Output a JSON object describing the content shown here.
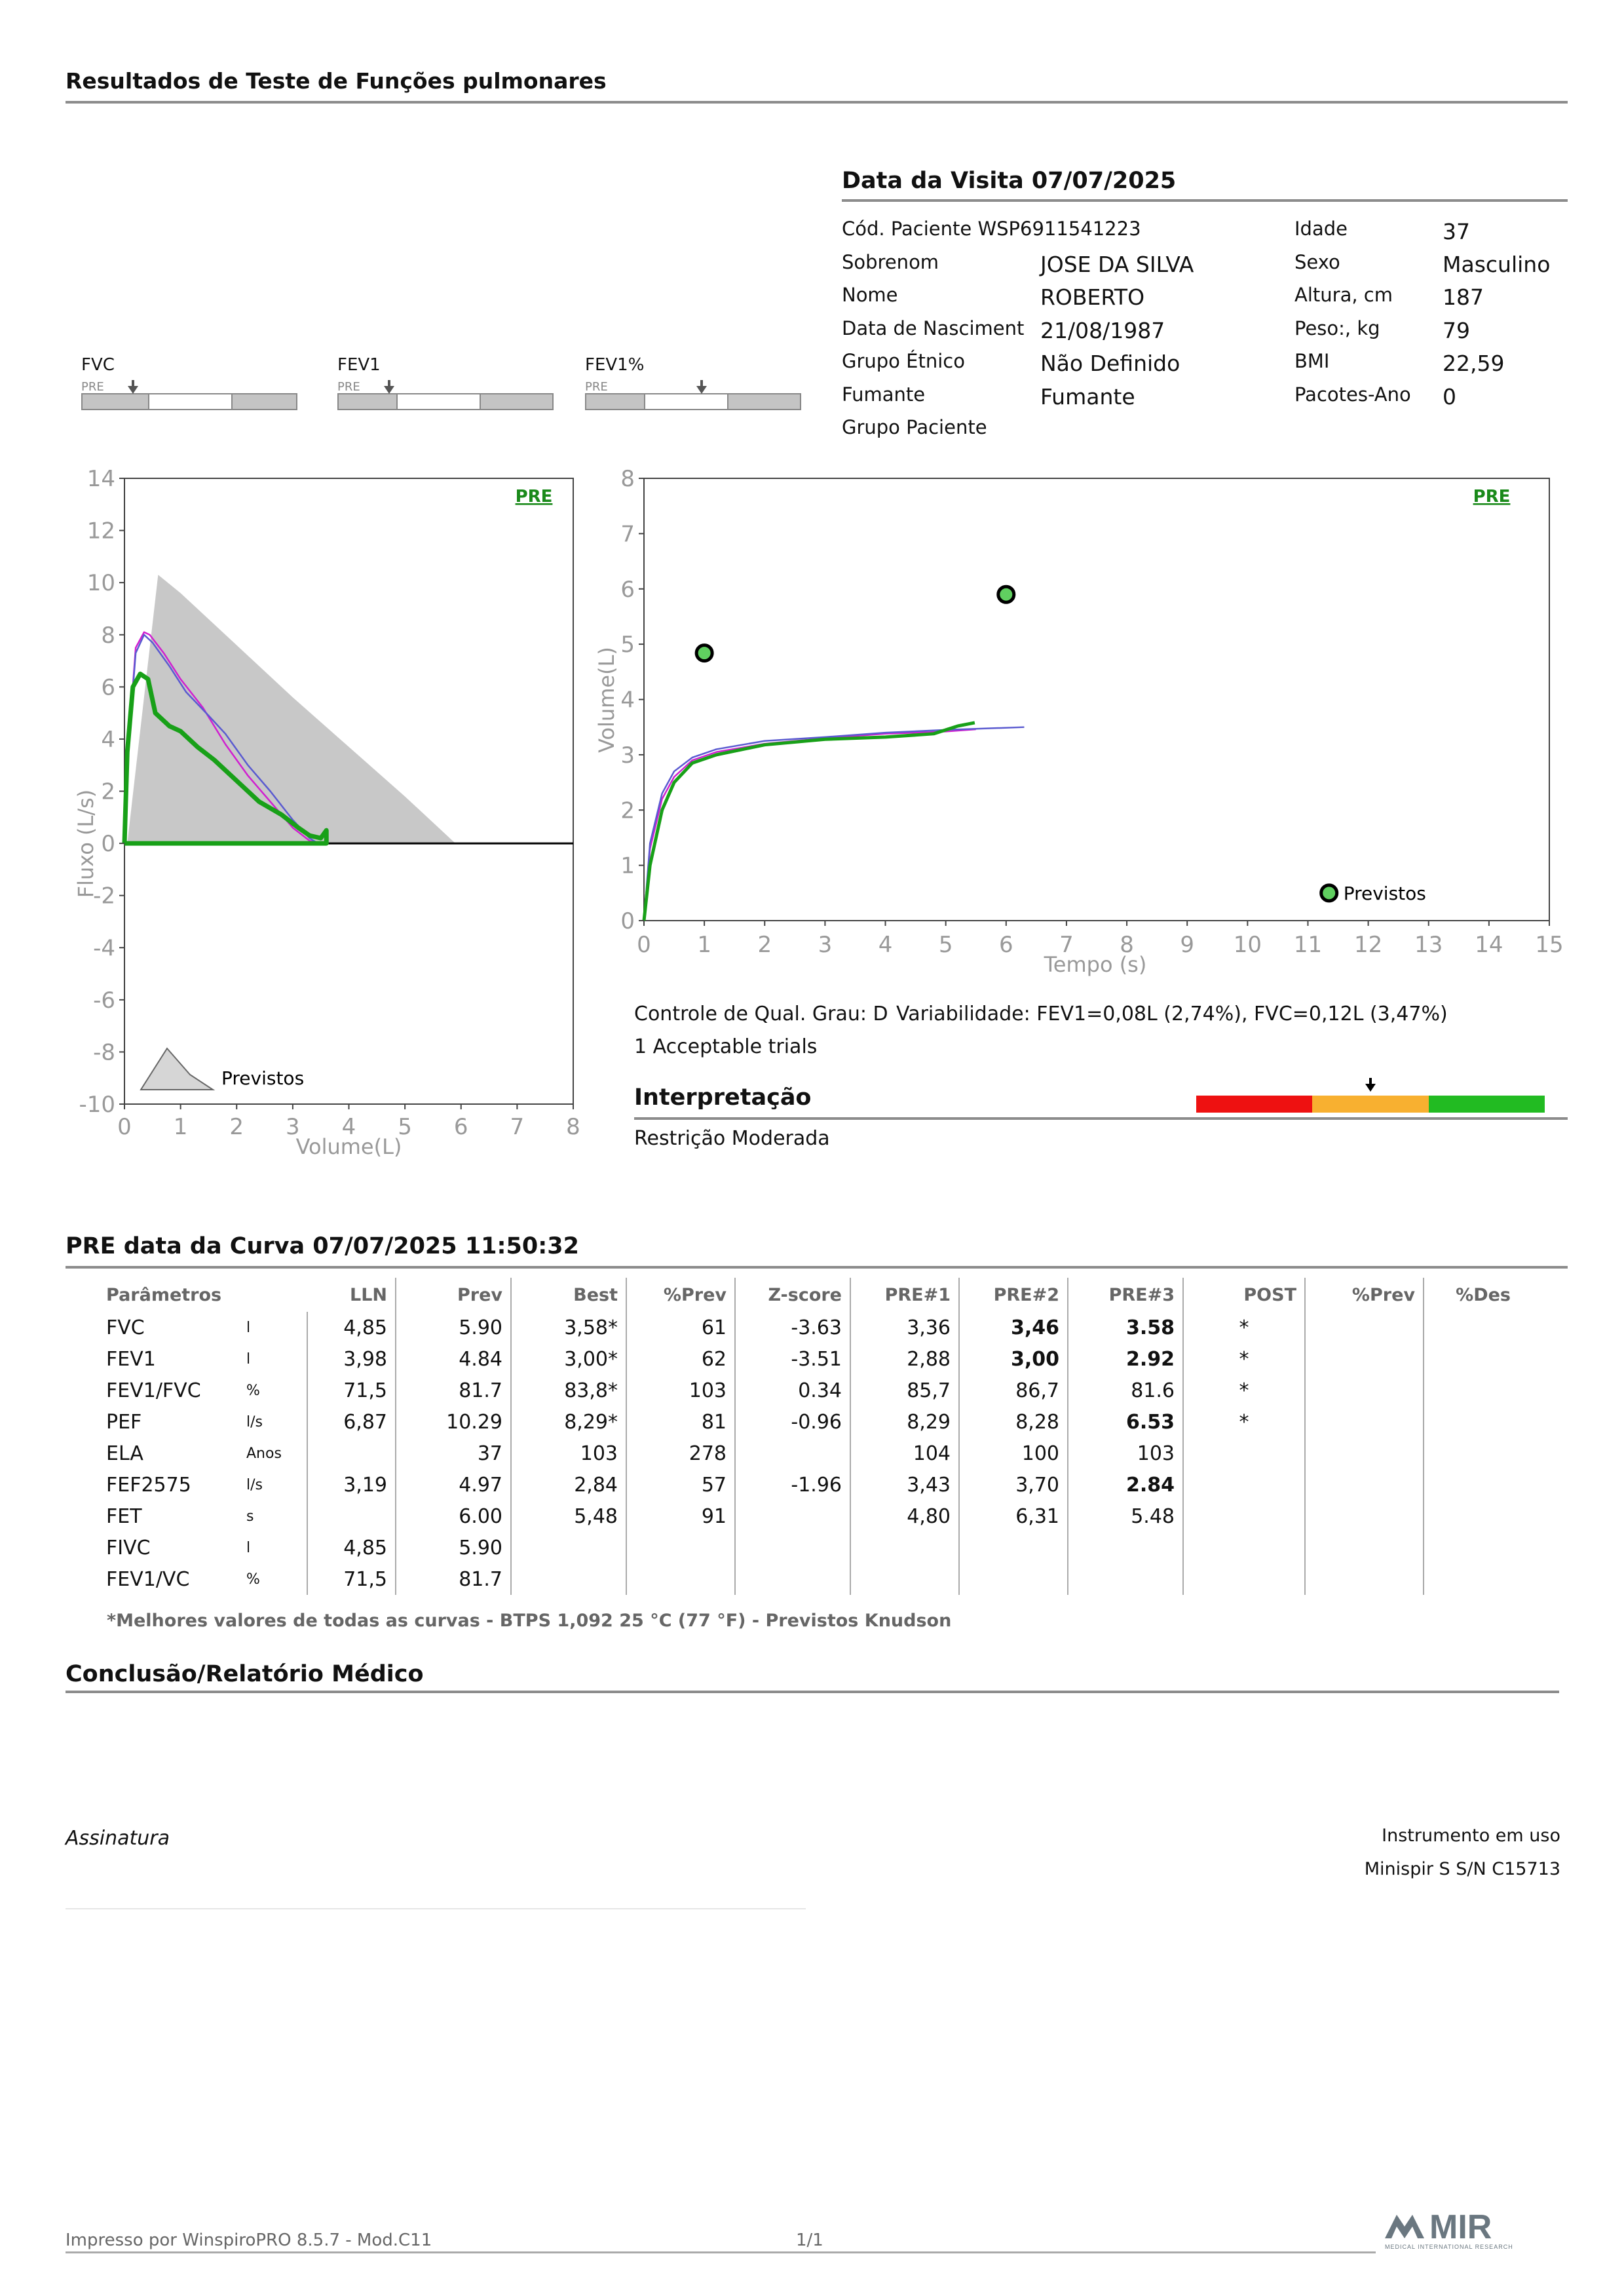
{
  "header": {
    "title": "Resultados de Teste de Funções pulmonares"
  },
  "visit": {
    "title": "Data da Visita 07/07/2025"
  },
  "patient": {
    "code_label": "Cód. Paciente WSP6911541223",
    "surname_label": "Sobrenom",
    "surname": "JOSE DA SILVA",
    "name_label": "Nome",
    "name": "ROBERTO",
    "birth_label": "Data de Nasciment",
    "birth": "21/08/1987",
    "ethnic_label": "Grupo Étnico",
    "ethnic": "Não Definido",
    "smoker_label": "Fumante",
    "smoker": "Fumante",
    "group_label": "Grupo Paciente",
    "age_label": "Idade",
    "age": "37",
    "sex_label": "Sexo",
    "sex": "Masculino",
    "height_label": "Altura, cm",
    "height": "187",
    "weight_label": "Peso:, kg",
    "weight": "79",
    "bmi_label": "BMI",
    "bmi": "22,59",
    "packs_label": "Pacotes-Ano",
    "packs": "0"
  },
  "gauges": [
    {
      "label": "FVC",
      "pre": "PRE",
      "level": 0.24
    },
    {
      "label": "FEV1",
      "pre": "PRE",
      "level": 0.24
    },
    {
      "label": "FEV1%",
      "pre": "PRE",
      "level": 0.54
    }
  ],
  "chart_data": [
    {
      "type": "line",
      "pre_label": "PRE",
      "xlabel": "Volume(L)",
      "ylabel": "Fluxo (L/s)",
      "xlim": [
        0,
        8
      ],
      "ylim": [
        -10,
        14
      ],
      "x_ticks": [
        "0",
        "1",
        "2",
        "3",
        "4",
        "5",
        "6",
        "7",
        "8"
      ],
      "y_ticks": [
        "14",
        "12",
        "10",
        "8",
        "6",
        "4",
        "2",
        "0",
        "-2",
        "-4",
        "-6",
        "-8",
        "-10"
      ],
      "legend": "Previstos",
      "predicted_area": {
        "x": [
          0.05,
          0.6,
          1.0,
          2.0,
          3.0,
          4.0,
          5.0,
          5.9
        ],
        "y": [
          0,
          10.3,
          9.6,
          7.6,
          5.6,
          3.7,
          1.8,
          0
        ]
      },
      "series": [
        {
          "color": "#d020d0",
          "x": [
            0,
            0.08,
            0.2,
            0.35,
            0.45,
            0.7,
            1.0,
            1.4,
            1.8,
            2.2,
            2.6,
            3.0,
            3.3,
            3.45
          ],
          "y": [
            0,
            4,
            7.5,
            8.1,
            8.0,
            7.3,
            6.3,
            5.2,
            3.8,
            2.6,
            1.6,
            0.6,
            0.1,
            0
          ]
        },
        {
          "color": "#5a5ad0",
          "x": [
            0,
            0.08,
            0.2,
            0.35,
            0.5,
            0.8,
            1.1,
            1.5,
            1.8,
            2.2,
            2.6,
            3.0,
            3.3,
            3.45
          ],
          "y": [
            0,
            4,
            7.3,
            8.0,
            7.7,
            6.8,
            5.8,
            4.9,
            4.2,
            3.0,
            2.0,
            0.9,
            0.2,
            0
          ]
        },
        {
          "color": "#18a018",
          "x": [
            0,
            0.05,
            0.15,
            0.28,
            0.42,
            0.55,
            0.8,
            1.0,
            1.3,
            1.6,
            2.0,
            2.4,
            2.8,
            3.1,
            3.3,
            3.5,
            3.6,
            3.6,
            0
          ],
          "y": [
            0,
            3.5,
            6.0,
            6.5,
            6.3,
            5.0,
            4.5,
            4.3,
            3.7,
            3.2,
            2.4,
            1.6,
            1.1,
            0.6,
            0.3,
            0.2,
            0.5,
            0,
            0
          ]
        }
      ]
    },
    {
      "type": "line",
      "pre_label": "PRE",
      "xlabel": "Tempo (s)",
      "ylabel": "Volume(L)",
      "xlim": [
        0,
        15
      ],
      "ylim": [
        0,
        8
      ],
      "x_ticks": [
        "0",
        "1",
        "2",
        "3",
        "4",
        "5",
        "6",
        "7",
        "8",
        "9",
        "10",
        "11",
        "12",
        "13",
        "14",
        "15"
      ],
      "y_ticks": [
        "8",
        "7",
        "6",
        "5",
        "4",
        "3",
        "2",
        "1",
        "0"
      ],
      "legend": "Previstos",
      "points": [
        {
          "x": 1.0,
          "y": 4.84
        },
        {
          "x": 6.0,
          "y": 5.9
        },
        {
          "x": 11.35,
          "y": 0.5
        }
      ],
      "series": [
        {
          "color": "#d020d0",
          "x": [
            0,
            0.1,
            0.3,
            0.5,
            0.8,
            1.2,
            2.0,
            3.0,
            4.0,
            5.0,
            5.5
          ],
          "y": [
            0,
            1.3,
            2.2,
            2.6,
            2.9,
            3.05,
            3.2,
            3.3,
            3.38,
            3.42,
            3.46
          ]
        },
        {
          "color": "#5a5ad0",
          "x": [
            0,
            0.1,
            0.3,
            0.5,
            0.8,
            1.2,
            2.0,
            3.0,
            4.0,
            5.0,
            6.3
          ],
          "y": [
            0,
            1.4,
            2.3,
            2.7,
            2.95,
            3.1,
            3.25,
            3.32,
            3.4,
            3.45,
            3.5
          ]
        },
        {
          "color": "#18a018",
          "x": [
            0,
            0.1,
            0.3,
            0.5,
            0.8,
            1.2,
            2.0,
            3.0,
            4.0,
            4.8,
            5.2,
            5.48
          ],
          "y": [
            0,
            1.0,
            2.0,
            2.5,
            2.85,
            3.0,
            3.18,
            3.28,
            3.32,
            3.38,
            3.52,
            3.58
          ]
        }
      ]
    }
  ],
  "quality": {
    "grade": "Controle de Qual. Grau: D",
    "variability": "Variabilidade: FEV1=0,08L (2,74%), FVC=0,12L (3,47%)",
    "trials": "1 Acceptable trials"
  },
  "interpretation": {
    "title": "Interpretação",
    "text": "Restrição Moderada",
    "colors": [
      "#ee1111",
      "#f8b030",
      "#22bb22"
    ],
    "level": 0.5
  },
  "curve": {
    "title": "PRE data da Curva 07/07/2025   11:50:32"
  },
  "table": {
    "headers": [
      "Parâmetros",
      "LLN",
      "Prev",
      "Best",
      "%Prev",
      "Z-score",
      "PRE#1",
      "PRE#2",
      "PRE#3",
      "POST",
      "%Prev",
      "%Des"
    ],
    "rows": [
      {
        "name": "FVC",
        "unit": "l",
        "lln": "4,85",
        "prev": "5.90",
        "best": "3,58*",
        "pprev": "61",
        "z": "-3.63",
        "p1": "3,36",
        "p2": "3,46",
        "p3": "3.58",
        "post": "*",
        "b2": true,
        "b3": true
      },
      {
        "name": "FEV1",
        "unit": "l",
        "lln": "3,98",
        "prev": "4.84",
        "best": "3,00*",
        "pprev": "62",
        "z": "-3.51",
        "p1": "2,88",
        "p2": "3,00",
        "p3": "2.92",
        "post": "*",
        "b2": true,
        "b3": true
      },
      {
        "name": "FEV1/FVC",
        "unit": "%",
        "lln": "71,5",
        "prev": "81.7",
        "best": "83,8*",
        "pprev": "103",
        "z": "0.34",
        "p1": "85,7",
        "p2": "86,7",
        "p3": "81.6",
        "post": "*",
        "b2": false,
        "b3": false
      },
      {
        "name": "PEF",
        "unit": "l/s",
        "lln": "6,87",
        "prev": "10.29",
        "best": "8,29*",
        "pprev": "81",
        "z": "-0.96",
        "p1": "8,29",
        "p2": "8,28",
        "p3": "6.53",
        "post": "*",
        "b2": false,
        "b3": true
      },
      {
        "name": "ELA",
        "unit": "Anos",
        "lln": "",
        "prev": "37",
        "best": "103",
        "pprev": "278",
        "z": "",
        "p1": "104",
        "p2": "100",
        "p3": "103",
        "post": "",
        "b2": false,
        "b3": false
      },
      {
        "name": "FEF2575",
        "unit": "l/s",
        "lln": "3,19",
        "prev": "4.97",
        "best": "2,84",
        "pprev": "57",
        "z": "-1.96",
        "p1": "3,43",
        "p2": "3,70",
        "p3": "2.84",
        "post": "",
        "b2": false,
        "b3": true
      },
      {
        "name": "FET",
        "unit": "s",
        "lln": "",
        "prev": "6.00",
        "best": "5,48",
        "pprev": "91",
        "z": "",
        "p1": "4,80",
        "p2": "6,31",
        "p3": "5.48",
        "post": "",
        "b2": false,
        "b3": false
      },
      {
        "name": "FIVC",
        "unit": "l",
        "lln": "4,85",
        "prev": "5.90",
        "best": "",
        "pprev": "",
        "z": "",
        "p1": "",
        "p2": "",
        "p3": "",
        "post": "",
        "b2": false,
        "b3": false
      },
      {
        "name": "FEV1/VC",
        "unit": "%",
        "lln": "71,5",
        "prev": "81.7",
        "best": "",
        "pprev": "",
        "z": "",
        "p1": "",
        "p2": "",
        "p3": "",
        "post": "",
        "b2": false,
        "b3": false
      }
    ],
    "footnote": "*Melhores valores de todas as curvas - BTPS  1,092  25 °C  (77 °F) - Previstos Knudson"
  },
  "conclusion": {
    "title": "Conclusão/Relatório Médico"
  },
  "signature": {
    "label": "Assinatura"
  },
  "instrument": {
    "label": "Instrumento em uso",
    "value": "Minispir S S/N C15713"
  },
  "footer": {
    "printed": "Impresso por WinspiroPRO  8.5.7 - Mod.C11",
    "page": "1/1"
  },
  "logo": {
    "text": "MIR",
    "subtitle": "MEDICAL INTERNATIONAL RESEARCH"
  }
}
